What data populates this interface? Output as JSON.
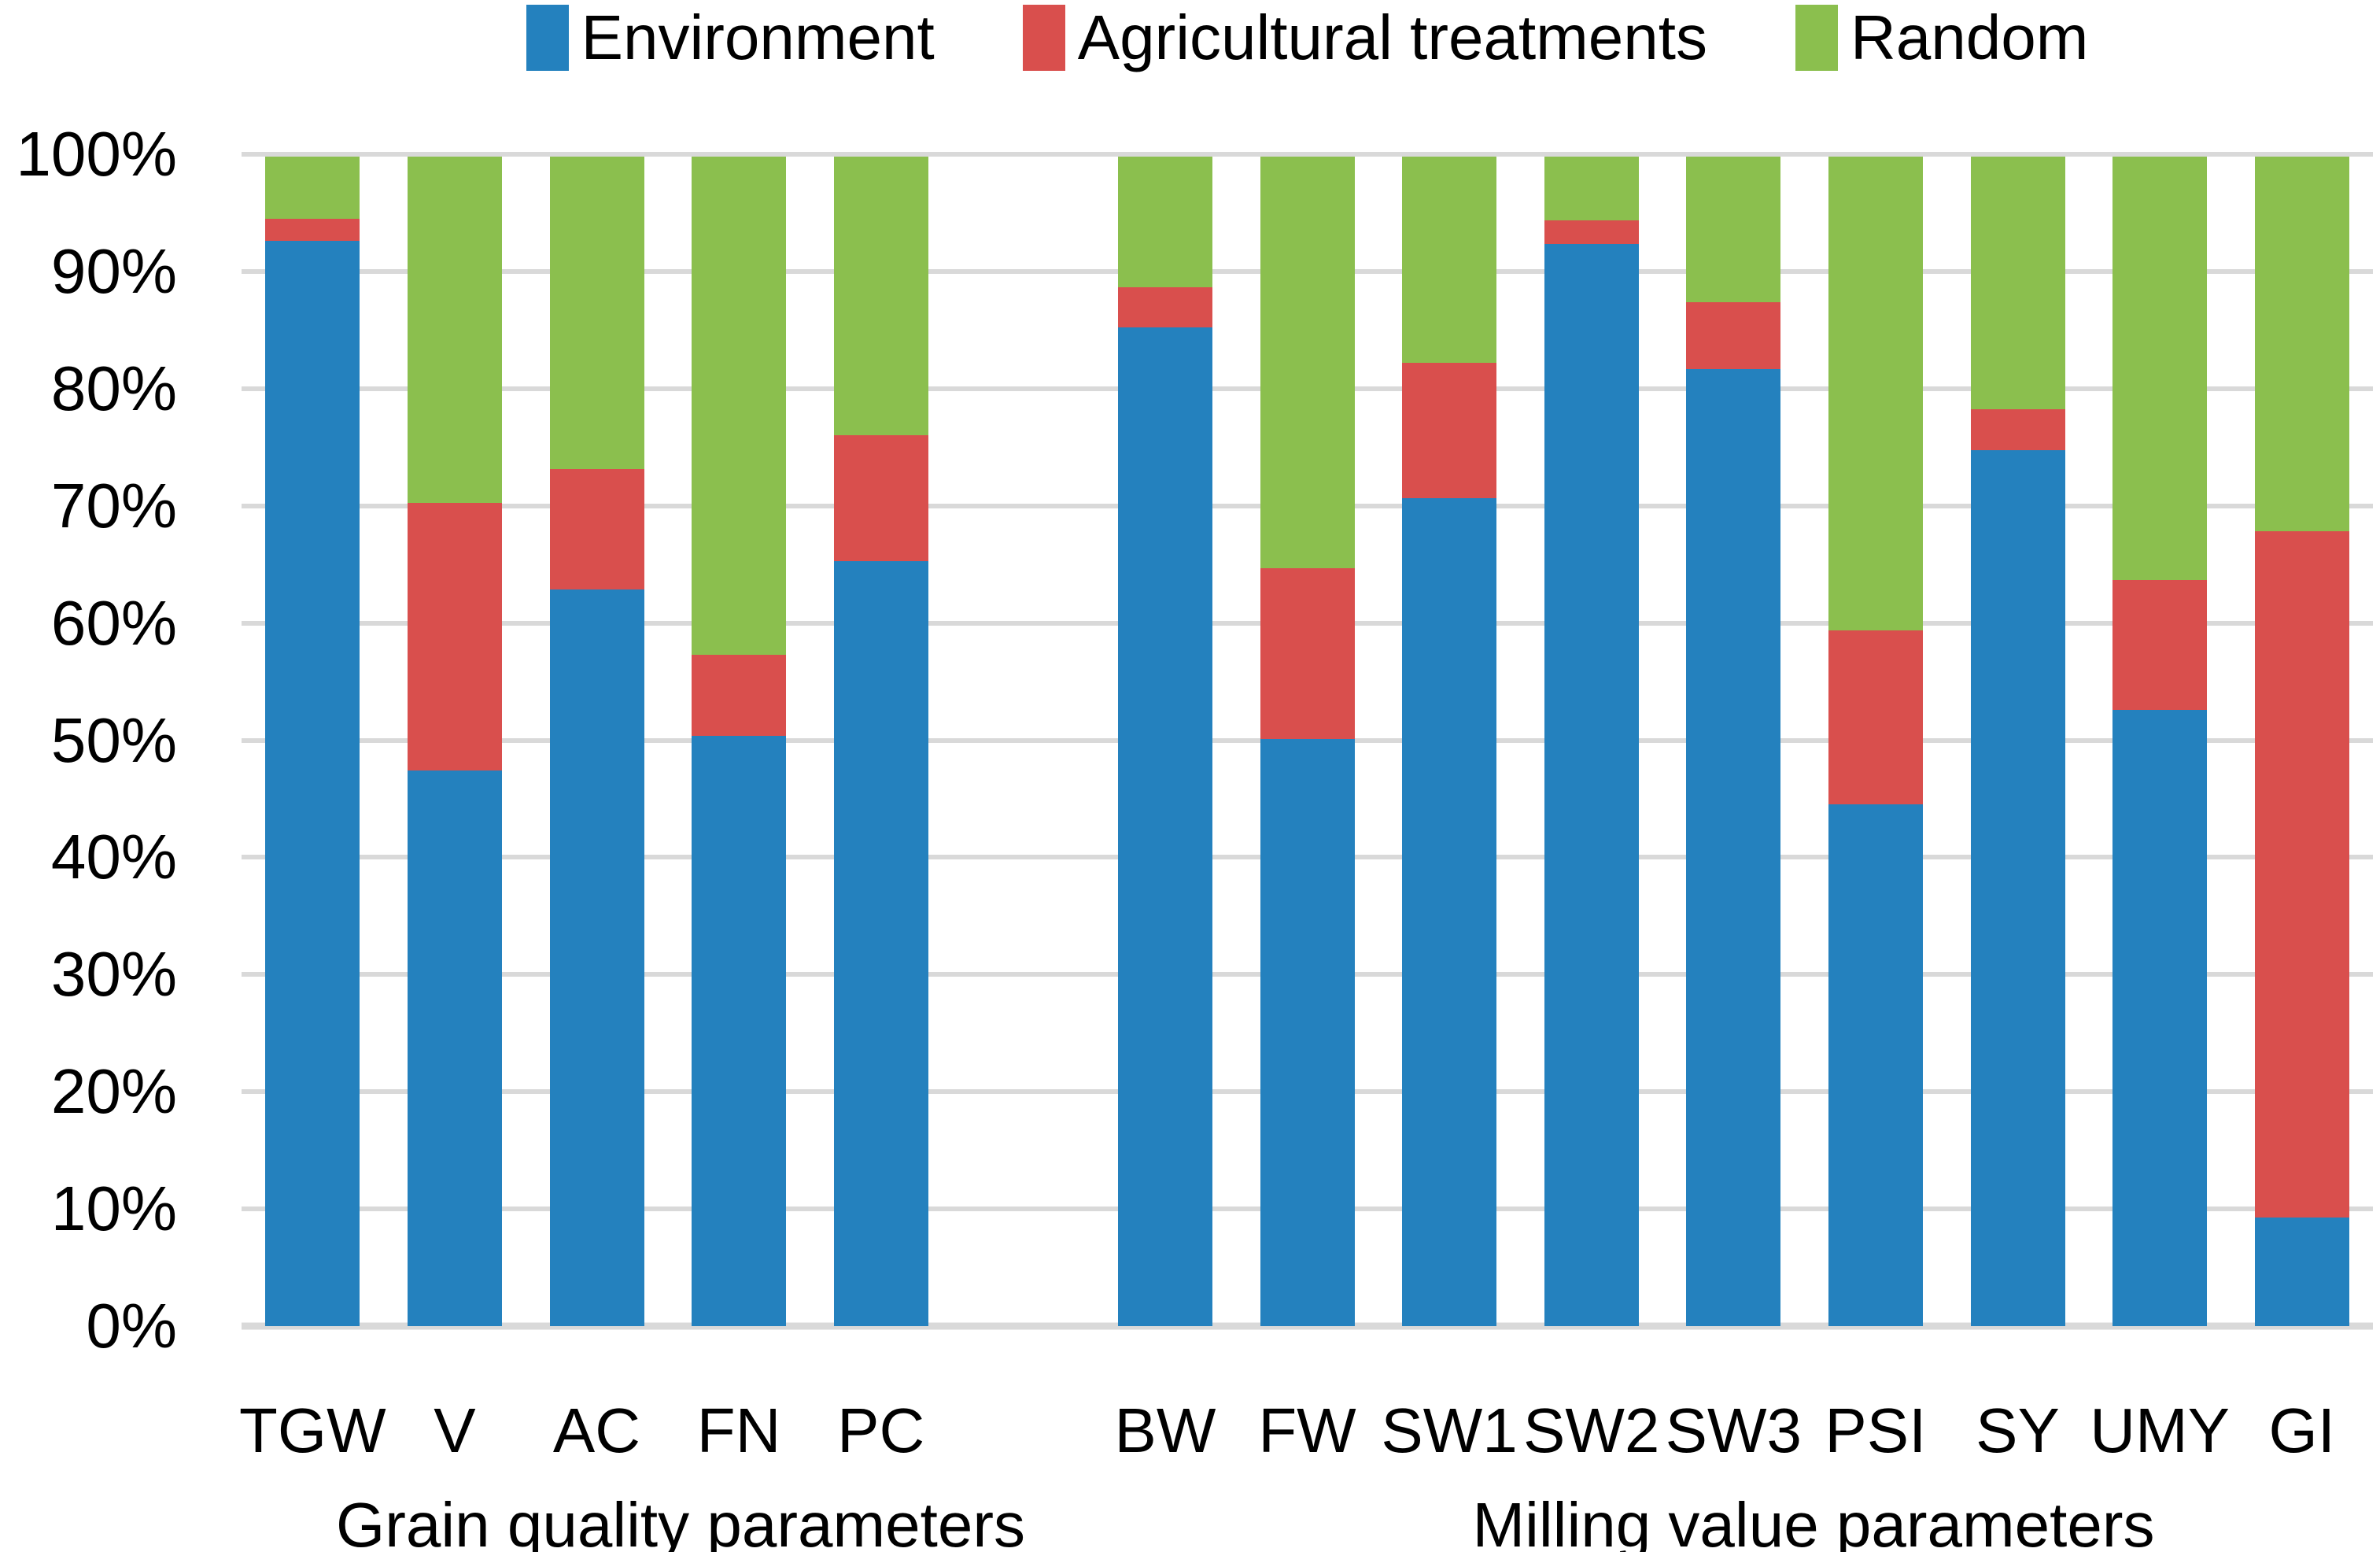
{
  "y_axis": {
    "tick_labels": [
      "0%",
      "10%",
      "20%",
      "30%",
      "40%",
      "50%",
      "60%",
      "70%",
      "80%",
      "90%",
      "100%"
    ]
  },
  "x_axis": {
    "group_labels": [
      "Grain quality parameters",
      "Milling value parameters"
    ]
  },
  "colors": {
    "environment_blue": "#2481BE",
    "agricultural_red": "#D94F4D",
    "random_green": "#8BBF4E",
    "gridline_gray": "#D9D9D9",
    "text": "#000000",
    "background": "#FFFFFF"
  },
  "chart_data": {
    "type": "bar",
    "stacked": true,
    "units": "percent",
    "title": "",
    "categories": [
      "TGW",
      "V",
      "AC",
      "FN",
      "PC",
      "BW",
      "FW",
      "SW1",
      "SW2",
      "SW3",
      "PSI",
      "SY",
      "UMY",
      "GI"
    ],
    "groups": [
      {
        "label": "Grain quality parameters",
        "categories": [
          "TGW",
          "V",
          "AC",
          "FN",
          "PC"
        ]
      },
      {
        "label": "Milling value parameters",
        "categories": [
          "BW",
          "FW",
          "SW1",
          "SW2",
          "SW3",
          "PSI",
          "SY",
          "UMY",
          "GI"
        ]
      }
    ],
    "series": [
      {
        "name": "Environment",
        "color": "#2481BE",
        "values": [
          92.8,
          47.5,
          63.0,
          50.5,
          65.4,
          85.4,
          50.2,
          70.8,
          92.5,
          81.8,
          44.6,
          74.9,
          52.7,
          9.3
        ]
      },
      {
        "name": "Agricultural treatments",
        "color": "#D94F4D",
        "values": [
          1.9,
          22.9,
          10.3,
          6.9,
          10.8,
          3.4,
          14.6,
          11.6,
          2.0,
          5.7,
          14.9,
          3.5,
          11.1,
          58.7
        ]
      },
      {
        "name": "Random",
        "color": "#8BBF4E",
        "values": [
          5.3,
          29.6,
          26.7,
          42.6,
          23.8,
          11.2,
          35.2,
          17.6,
          5.5,
          12.5,
          40.5,
          21.6,
          36.2,
          32.0
        ]
      }
    ],
    "ylim": [
      0,
      100
    ],
    "y_ticks_percent": [
      0,
      10,
      20,
      30,
      40,
      50,
      60,
      70,
      80,
      90,
      100
    ],
    "legend_position": "top",
    "grid": "horizontal"
  }
}
